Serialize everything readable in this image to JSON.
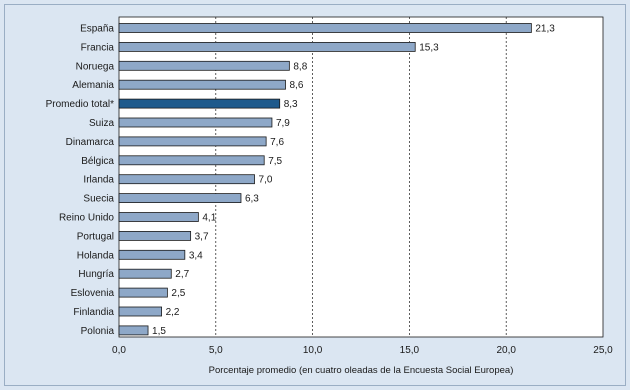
{
  "chart_data": {
    "type": "bar",
    "orientation": "horizontal",
    "categories": [
      "España",
      "Francia",
      "Noruega",
      "Alemania",
      "Promedio total*",
      "Suiza",
      "Dinamarca",
      "Bélgica",
      "Irlanda",
      "Suecia",
      "Reino Unido",
      "Portugal",
      "Holanda",
      "Hungría",
      "Eslovenia",
      "Finlandia",
      "Polonia"
    ],
    "values": [
      21.3,
      15.3,
      8.8,
      8.6,
      8.3,
      7.9,
      7.6,
      7.5,
      7.0,
      6.3,
      4.1,
      3.7,
      3.4,
      2.7,
      2.5,
      2.2,
      1.5
    ],
    "value_labels": [
      "21,3",
      "15,3",
      "8,8",
      "8,6",
      "8,3",
      "7,9",
      "7,6",
      "7,5",
      "7,0",
      "6,3",
      "4,1",
      "3,7",
      "3,4",
      "2,7",
      "2,5",
      "2,2",
      "1,5"
    ],
    "highlight_category": "Promedio total*",
    "xlabel": "Porcentaje promedio (en cuatro oleadas de la Encuesta Social Europea)",
    "ylabel": "",
    "xlim": [
      0,
      25
    ],
    "x_ticks": [
      0,
      5,
      10,
      15,
      20,
      25
    ],
    "x_tick_labels": [
      "0,0",
      "5,0",
      "10,0",
      "15,0",
      "20,0",
      "25,0"
    ],
    "grid": "vertical dashed",
    "colors": {
      "bar": "#8ea8c8",
      "bar_highlight": "#1e5a8c",
      "bar_border": "#1a1a1a",
      "plot_background": "#ffffff",
      "page_background": "#dbe6f2"
    }
  }
}
